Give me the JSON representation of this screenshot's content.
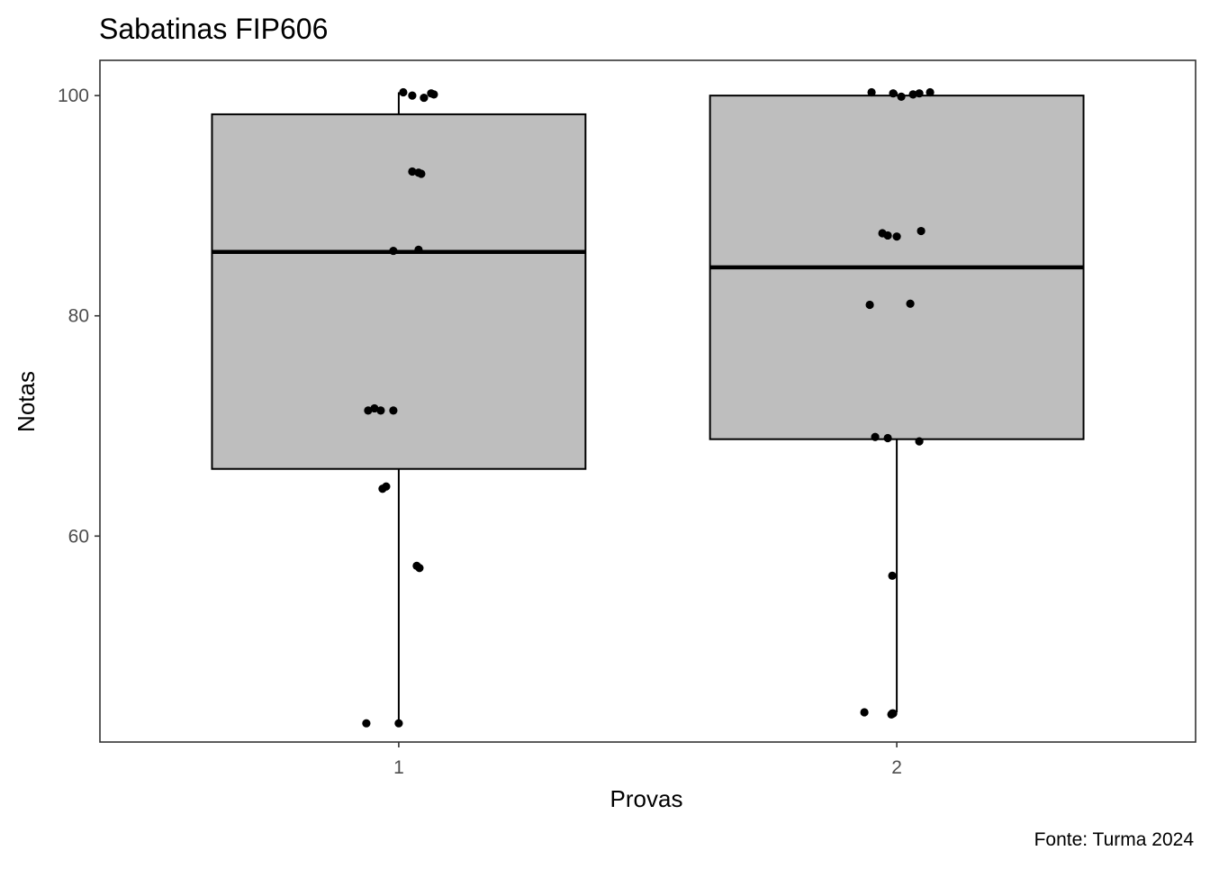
{
  "chart_data": {
    "type": "boxplot",
    "title": "Sabatinas FIP606",
    "caption": "Fonte: Turma 2024",
    "xlabel": "Provas",
    "ylabel": "Notas",
    "categories": [
      "1",
      "2"
    ],
    "ylim": [
      41.3,
      103.2
    ],
    "yticks": [
      60,
      80,
      100
    ],
    "grid": false,
    "box_fill": "#bebebe",
    "point_color": "#000000",
    "boxes": [
      {
        "category": "1",
        "lower": 43.0,
        "q1": 66.1,
        "median": 85.8,
        "q3": 98.3,
        "upper": 100.3
      },
      {
        "category": "2",
        "lower": 44.0,
        "q1": 68.8,
        "median": 84.4,
        "q3": 100.0,
        "upper": 100.3
      }
    ],
    "points": [
      {
        "category": "1",
        "values": [
          100.3,
          100.0,
          99.8,
          100.2,
          100.1,
          93.1,
          92.9,
          93.0,
          85.9,
          86.0,
          71.4,
          71.6,
          71.4,
          71.4,
          64.3,
          64.5,
          57.3,
          57.1,
          43.0,
          43.0
        ]
      },
      {
        "category": "2",
        "values": [
          100.3,
          100.2,
          99.9,
          100.1,
          100.2,
          100.3,
          87.5,
          87.3,
          87.2,
          87.7,
          81.0,
          81.1,
          69.0,
          68.9,
          68.6,
          56.4,
          44.0,
          43.8,
          43.9,
          43.9
        ]
      }
    ]
  }
}
